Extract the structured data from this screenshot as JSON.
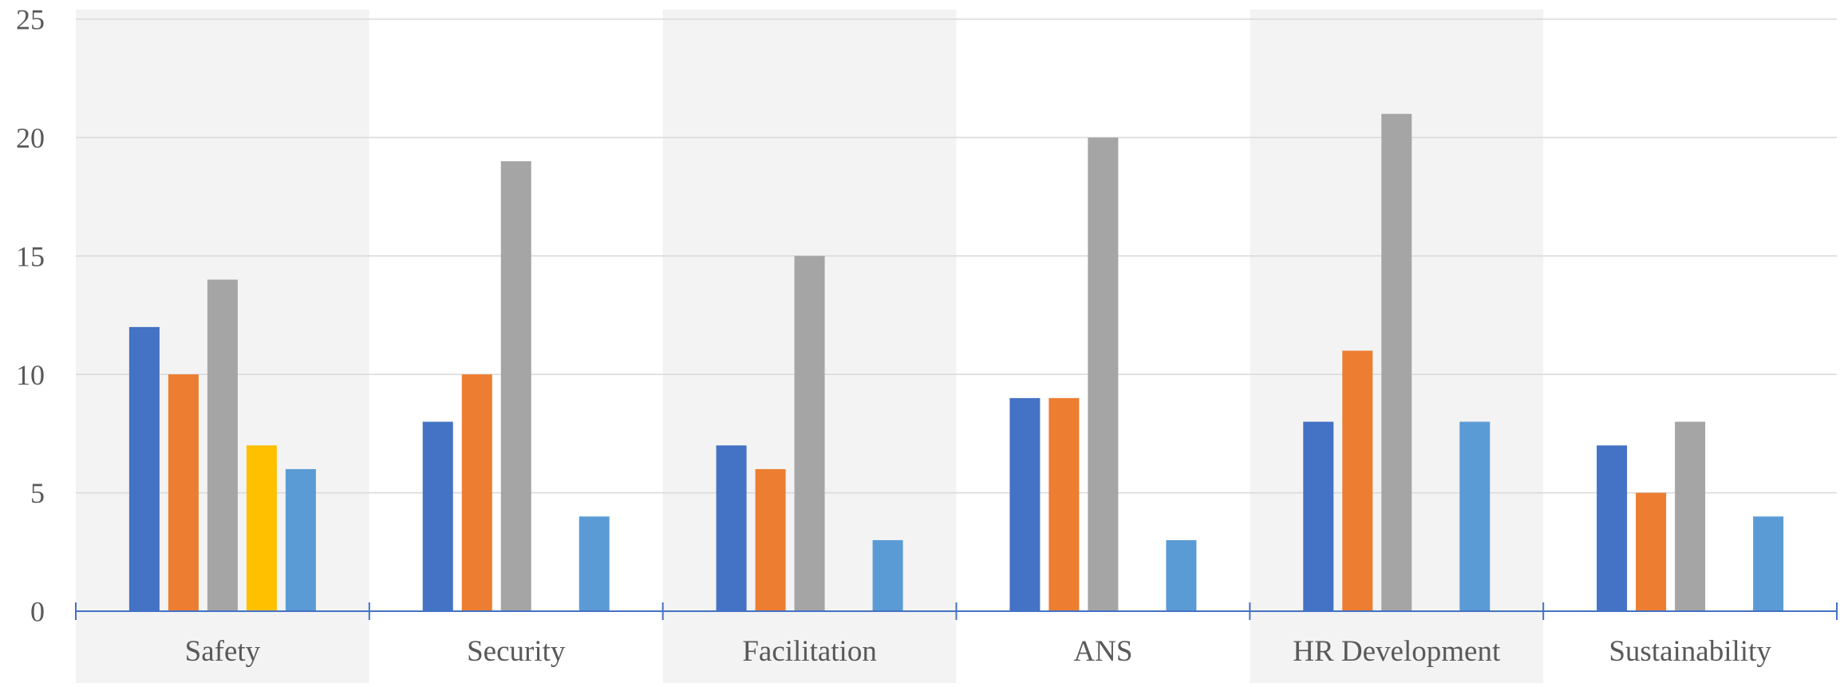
{
  "chart_data": {
    "type": "bar",
    "categories": [
      "Safety",
      "Security",
      "Facilitation",
      "ANS",
      "HR Development",
      "Sustainability"
    ],
    "series": [
      {
        "color": "#4472C4",
        "values": [
          12,
          8,
          7,
          9,
          8,
          7
        ]
      },
      {
        "color": "#ED7D31",
        "values": [
          10,
          10,
          6,
          9,
          11,
          5
        ]
      },
      {
        "color": "#A5A5A5",
        "values": [
          14,
          19,
          15,
          20,
          21,
          8
        ]
      },
      {
        "color": "#FFC000",
        "values": [
          7,
          0,
          0,
          0,
          0,
          0
        ]
      },
      {
        "color": "#5B9BD5",
        "values": [
          6,
          4,
          3,
          3,
          8,
          4
        ]
      }
    ],
    "ylim": [
      0,
      25
    ],
    "y_ticks": [
      "0",
      "5",
      "10",
      "15",
      "20",
      "25"
    ],
    "grid": true,
    "legend": "none",
    "category_band_colors": [
      "#F3F3F3",
      "#FFFFFF"
    ],
    "axis_color": "#4472C4",
    "gridline_color": "#D9D9D9"
  }
}
